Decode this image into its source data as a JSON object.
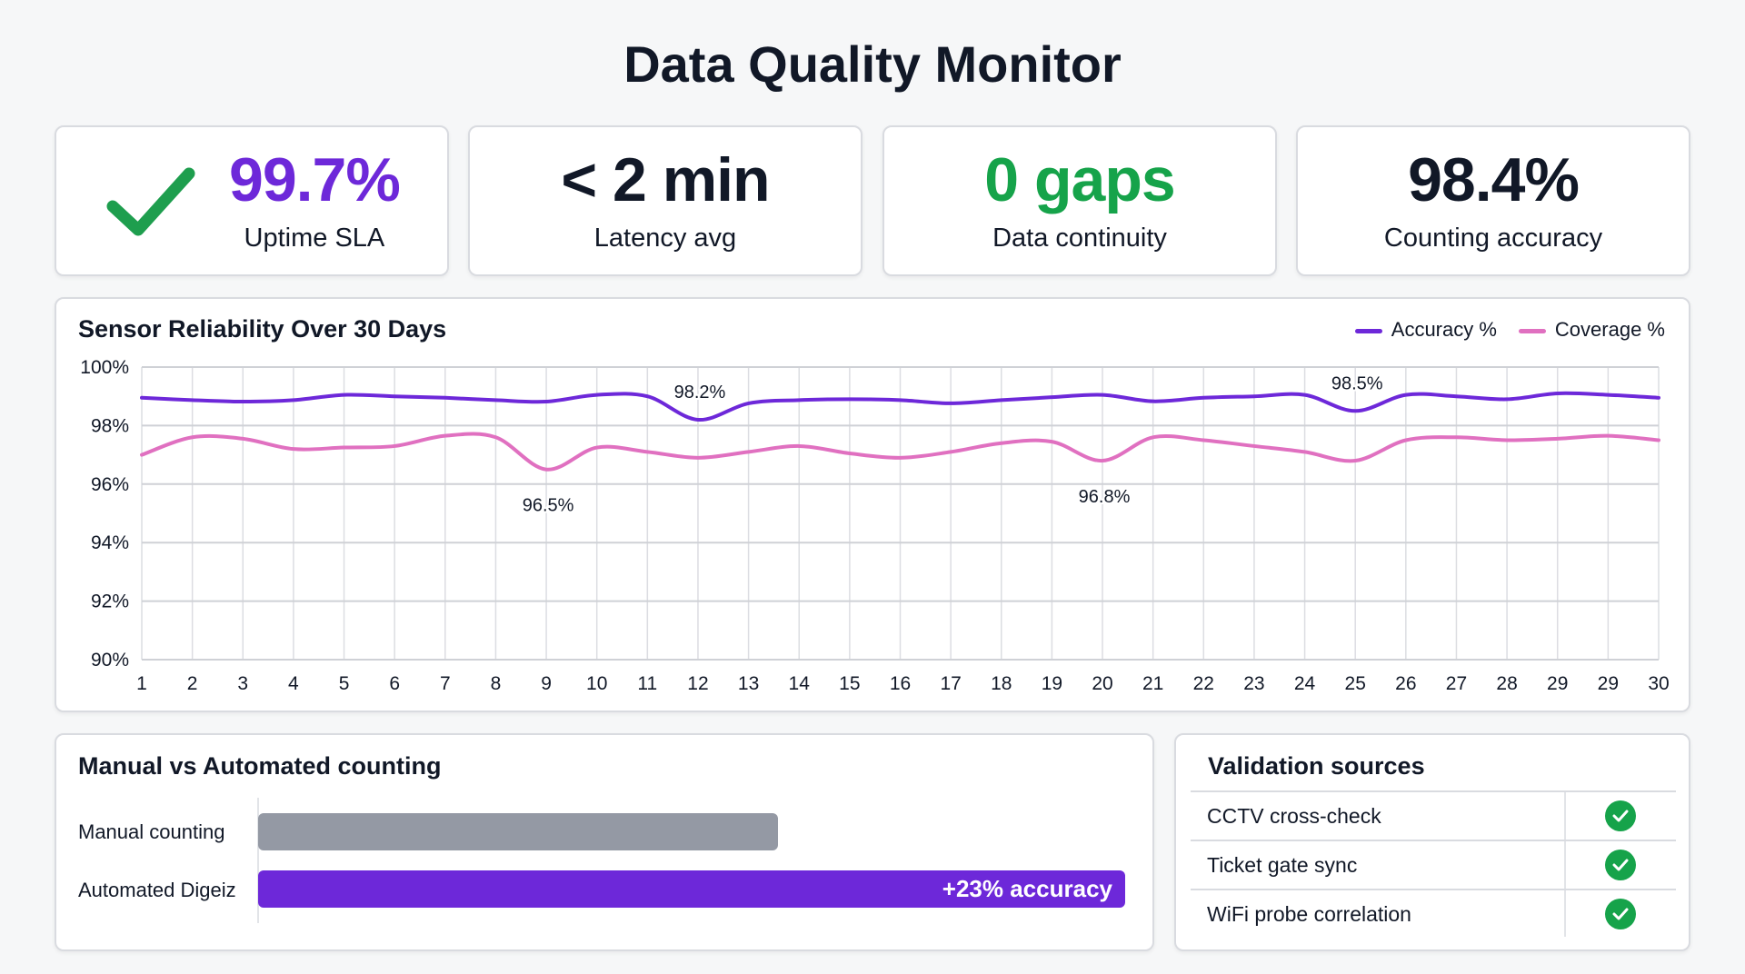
{
  "title": "Data Quality Monitor",
  "kpis": [
    {
      "value": "99.7%",
      "label": "Uptime SLA",
      "color": "#6d28d9",
      "icon": "check-icon"
    },
    {
      "value": "< 2 min",
      "label": "Latency avg",
      "color": "#111827"
    },
    {
      "value": "0 gaps",
      "label": "Data continuity",
      "color": "#16a34a"
    },
    {
      "value": "98.4%",
      "label": "Counting accuracy",
      "color": "#111827"
    }
  ],
  "chart_data": {
    "type": "line",
    "title": "Sensor Reliability Over 30 Days",
    "x": [
      "1",
      "2",
      "3",
      "4",
      "5",
      "6",
      "7",
      "8",
      "9",
      "10",
      "11",
      "12",
      "13",
      "14",
      "15",
      "16",
      "17",
      "18",
      "19",
      "20",
      "21",
      "22",
      "23",
      "24",
      "25",
      "26",
      "27",
      "28",
      "29",
      "29",
      "30"
    ],
    "yticks": [
      "90%",
      "92%",
      "94%",
      "96%",
      "98%",
      "100%"
    ],
    "ylim": [
      90,
      100
    ],
    "grid": true,
    "legend_position": "top-right",
    "series": [
      {
        "name": "Accuracy %",
        "color": "#6d28d9",
        "values": [
          98.95,
          98.87,
          98.82,
          98.87,
          99.05,
          99.0,
          98.95,
          98.87,
          98.82,
          99.05,
          99.0,
          98.2,
          98.76,
          98.87,
          98.9,
          98.87,
          98.76,
          98.87,
          98.97,
          99.05,
          98.83,
          98.95,
          99.0,
          99.05,
          98.5,
          99.05,
          99.0,
          98.9,
          99.1,
          99.05,
          98.95
        ]
      },
      {
        "name": "Coverage %",
        "color": "#e070c0",
        "values": [
          97.0,
          97.6,
          97.55,
          97.2,
          97.25,
          97.3,
          97.65,
          97.6,
          96.5,
          97.25,
          97.1,
          96.9,
          97.1,
          97.3,
          97.05,
          96.9,
          97.1,
          97.4,
          97.45,
          96.8,
          97.6,
          97.5,
          97.3,
          97.1,
          96.8,
          97.5,
          97.6,
          97.5,
          97.55,
          97.65,
          97.5
        ]
      }
    ],
    "annotations": [
      {
        "series": 0,
        "index": 11,
        "text": "98.2%",
        "position": "above"
      },
      {
        "series": 0,
        "index": 24,
        "text": "98.5%",
        "position": "above"
      },
      {
        "series": 1,
        "index": 8,
        "text": "96.5%",
        "position": "below"
      },
      {
        "series": 1,
        "index": 19,
        "text": "96.8%",
        "position": "below"
      }
    ]
  },
  "comparison": {
    "title": "Manual vs Automated counting",
    "bars": [
      {
        "label": "Manual counting",
        "fraction": 0.6,
        "color": "#9499a4",
        "text": ""
      },
      {
        "label": "Automated Digeiz",
        "fraction": 1.0,
        "color": "#6d28d9",
        "text": "+23% accuracy"
      }
    ]
  },
  "validation": {
    "title": "Validation sources",
    "rows": [
      {
        "name": "CCTV cross-check",
        "status": "check-icon"
      },
      {
        "name": "Ticket gate sync",
        "status": "check-icon"
      },
      {
        "name": "WiFi probe correlation",
        "status": "check-icon"
      }
    ],
    "status_color": "#16a34a"
  }
}
